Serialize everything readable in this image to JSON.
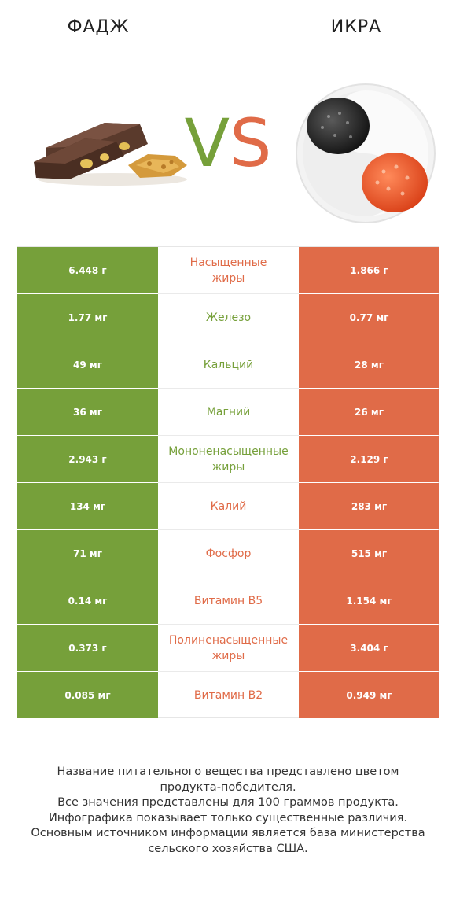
{
  "header": {
    "left_title": "ФАДЖ",
    "right_title": "ИКРА",
    "vs_v": "V",
    "vs_s": "S"
  },
  "colors": {
    "left_brand": "#76a03a",
    "right_brand": "#e06b48"
  },
  "images": {
    "left": "fudge-image",
    "right": "caviar-image"
  },
  "rows": [
    {
      "left": "6.448 г",
      "label": "Насыщенные\nжиры",
      "right": "1.866 г",
      "winner": "right"
    },
    {
      "left": "1.77 мг",
      "label": "Железо",
      "right": "0.77 мг",
      "winner": "left"
    },
    {
      "left": "49 мг",
      "label": "Кальций",
      "right": "28 мг",
      "winner": "left"
    },
    {
      "left": "36 мг",
      "label": "Магний",
      "right": "26 мг",
      "winner": "left"
    },
    {
      "left": "2.943 г",
      "label": "Мононенасыщенные\nжиры",
      "right": "2.129 г",
      "winner": "left"
    },
    {
      "left": "134 мг",
      "label": "Калий",
      "right": "283 мг",
      "winner": "right"
    },
    {
      "left": "71 мг",
      "label": "Фосфор",
      "right": "515 мг",
      "winner": "right"
    },
    {
      "left": "0.14 мг",
      "label": "Витамин B5",
      "right": "1.154 мг",
      "winner": "right"
    },
    {
      "left": "0.373 г",
      "label": "Полиненасыщенные\nжиры",
      "right": "3.404 г",
      "winner": "right"
    },
    {
      "left": "0.085 мг",
      "label": "Витамин B2",
      "right": "0.949 мг",
      "winner": "right"
    }
  ],
  "footnote": {
    "line1": "Название питательного вещества представлено цветом",
    "line2": "продукта-победителя.",
    "line3": "Все значения представлены для 100 граммов продукта.",
    "line4": "Инфографика показывает только существенные различия.",
    "line5": "Основным источником информации является база министерства",
    "line6": "сельского хозяйства США."
  }
}
